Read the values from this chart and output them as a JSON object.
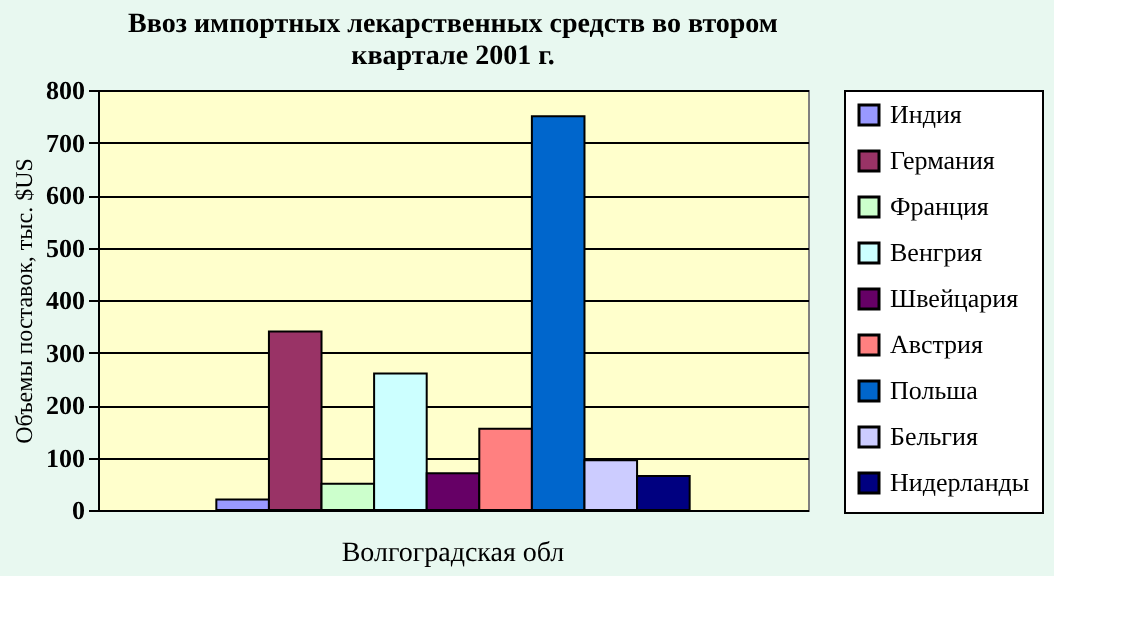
{
  "chart_data": {
    "type": "bar",
    "title": "Ввоз импортных лекарственных средств во втором квартале 2001 г.",
    "ylabel": "Объемы поставок, тыс. $US",
    "categories": [
      "Волгоградская обл"
    ],
    "series": [
      {
        "name": "Индия",
        "color": "#9999ff",
        "values": [
          20
        ]
      },
      {
        "name": "Германия",
        "color": "#993366",
        "values": [
          340
        ]
      },
      {
        "name": "Франция",
        "color": "#ccffcc",
        "values": [
          50
        ]
      },
      {
        "name": "Венгрия",
        "color": "#ccffff",
        "values": [
          260
        ]
      },
      {
        "name": "Швейцария",
        "color": "#660066",
        "values": [
          70
        ]
      },
      {
        "name": "Австрия",
        "color": "#ff8080",
        "values": [
          155
        ]
      },
      {
        "name": "Польша",
        "color": "#0066cc",
        "values": [
          750
        ]
      },
      {
        "name": "Бельгия",
        "color": "#ccccff",
        "values": [
          95
        ]
      },
      {
        "name": "Нидерланды",
        "color": "#000080",
        "values": [
          65
        ]
      }
    ],
    "ylim": [
      0,
      800
    ],
    "yticks": [
      0,
      100,
      200,
      300,
      400,
      500,
      600,
      700,
      800
    ],
    "grid": "y",
    "legend": "right"
  }
}
